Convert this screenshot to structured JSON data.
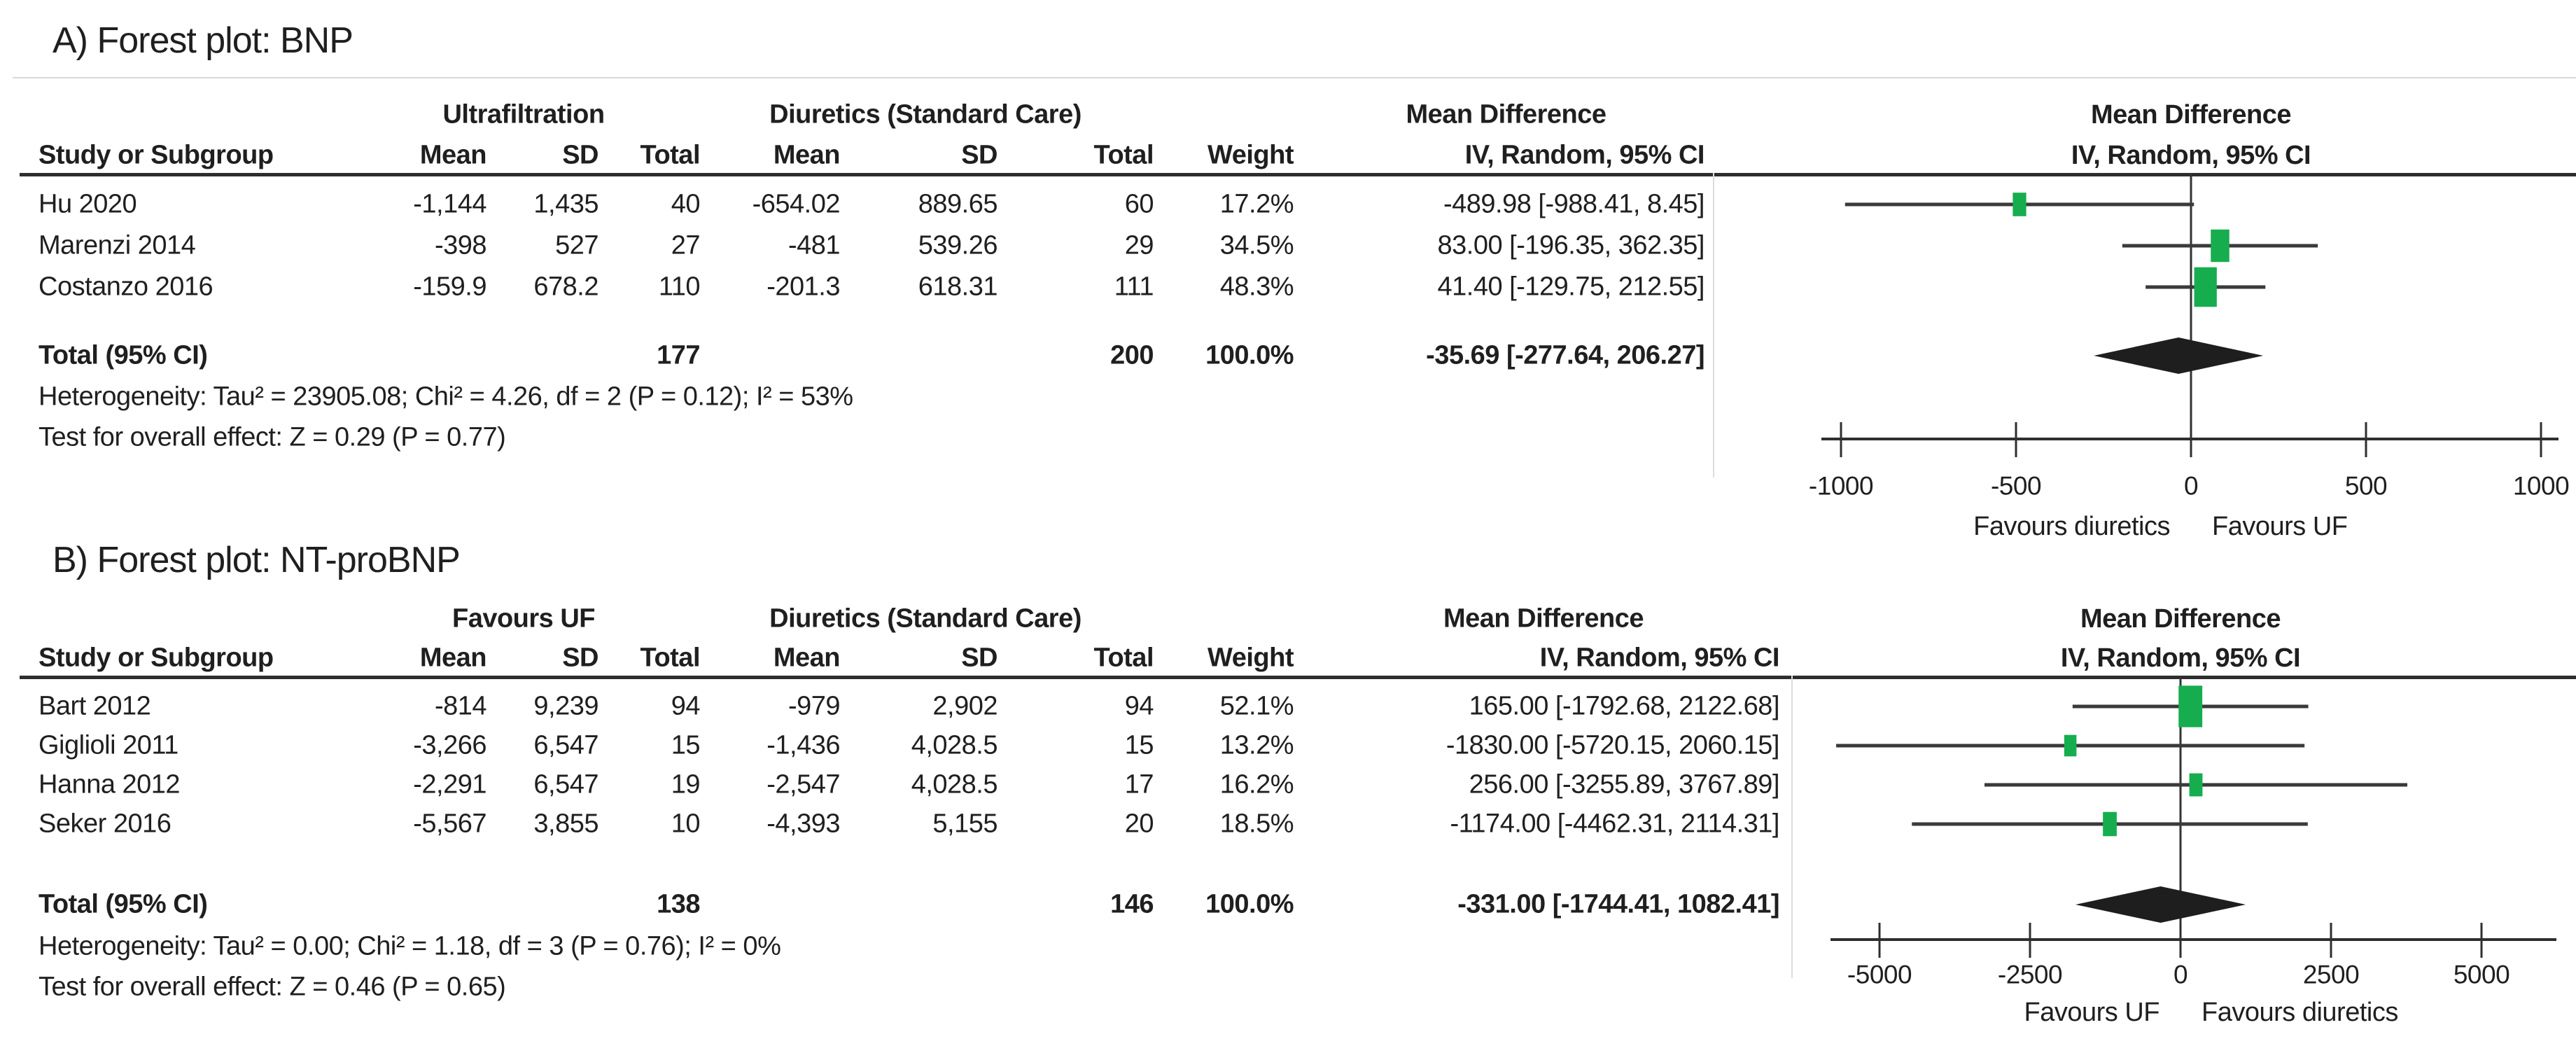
{
  "figure": {
    "kind": "meta-analysis forest plots",
    "background": "#ffffff"
  },
  "colors": {
    "marker_green": "#16AD4F",
    "ci_line": "#3a3a3a",
    "zero_line": "#333333",
    "axis": "#2f2f2f",
    "diamond": "#1e1e1e",
    "text": "#1f1f1f",
    "header_rule": "#2e2e2e",
    "hairline": "#d8d8d8",
    "separator": "#dedede"
  },
  "chart_data": [
    {
      "type": "scatter",
      "chart_kind": "forest_plot",
      "panel_label": "A",
      "title": "A) Forest plot: BNP",
      "group1_header": "Ultrafiltration",
      "group2_header": "Diuretics (Standard Care)",
      "effect_header": "Mean Difference",
      "effect_subheader": "IV, Random, 95% CI",
      "plot_header": "Mean Difference",
      "plot_subheader": "IV, Random, 95% CI",
      "columns": {
        "study": "Study or Subgroup",
        "mean": "Mean",
        "sd": "SD",
        "total": "Total",
        "weight": "Weight"
      },
      "studies": [
        {
          "name": "Hu 2020",
          "mean1": "-1,144",
          "sd1": "1,435",
          "total1": "40",
          "mean2": "-654.02",
          "sd2": "889.65",
          "total2": "60",
          "weight": "17.2%",
          "weight_pct": 17.2,
          "md_text": "-489.98 [-988.41, 8.45]",
          "md": -489.98,
          "ci_low": -988.41,
          "ci_high": 8.45
        },
        {
          "name": "Marenzi 2014",
          "mean1": "-398",
          "sd1": "527",
          "total1": "27",
          "mean2": "-481",
          "sd2": "539.26",
          "total2": "29",
          "weight": "34.5%",
          "weight_pct": 34.5,
          "md_text": "83.00 [-196.35, 362.35]",
          "md": 83.0,
          "ci_low": -196.35,
          "ci_high": 362.35
        },
        {
          "name": "Costanzo 2016",
          "mean1": "-159.9",
          "sd1": "678.2",
          "total1": "110",
          "mean2": "-201.3",
          "sd2": "618.31",
          "total2": "111",
          "weight": "48.3%",
          "weight_pct": 48.3,
          "md_text": "41.40 [-129.75, 212.55]",
          "md": 41.4,
          "ci_low": -129.75,
          "ci_high": 212.55
        }
      ],
      "total": {
        "label": "Total (95% CI)",
        "total1": "177",
        "total2": "200",
        "weight": "100.0%",
        "md_text": "-35.69 [-277.64, 206.27]",
        "md": -35.69,
        "ci_low": -277.64,
        "ci_high": 206.27
      },
      "heterogeneity": "Heterogeneity: Tau² = 23905.08; Chi² = 4.26, df = 2 (P = 0.12); I² = 53%",
      "overall_effect": "Test for overall effect: Z = 0.29 (P = 0.77)",
      "axis": {
        "min": -1000,
        "max": 1000,
        "ticks": [
          -1000,
          -500,
          0,
          500,
          1000
        ],
        "tick_labels": [
          "-1000",
          "-500",
          "0",
          "500",
          "1000"
        ],
        "favours_left": "Favours diuretics",
        "favours_right": "Favours UF"
      }
    },
    {
      "type": "scatter",
      "chart_kind": "forest_plot",
      "panel_label": "B",
      "title": "B) Forest plot: NT-proBNP",
      "group1_header": "Favours UF",
      "group2_header": "Diuretics (Standard Care)",
      "effect_header": "Mean Difference",
      "effect_subheader": "IV, Random, 95% CI",
      "plot_header": "Mean Difference",
      "plot_subheader": "IV, Random, 95% CI",
      "columns": {
        "study": "Study or Subgroup",
        "mean": "Mean",
        "sd": "SD",
        "total": "Total",
        "weight": "Weight"
      },
      "studies": [
        {
          "name": "Bart 2012",
          "mean1": "-814",
          "sd1": "9,239",
          "total1": "94",
          "mean2": "-979",
          "sd2": "2,902",
          "total2": "94",
          "weight": "52.1%",
          "weight_pct": 52.1,
          "md_text": "165.00 [-1792.68, 2122.68]",
          "md": 165.0,
          "ci_low": -1792.68,
          "ci_high": 2122.68
        },
        {
          "name": "Giglioli 2011",
          "mean1": "-3,266",
          "sd1": "6,547",
          "total1": "15",
          "mean2": "-1,436",
          "sd2": "4,028.5",
          "total2": "15",
          "weight": "13.2%",
          "weight_pct": 13.2,
          "md_text": "-1830.00 [-5720.15, 2060.15]",
          "md": -1830.0,
          "ci_low": -5720.15,
          "ci_high": 2060.15
        },
        {
          "name": "Hanna 2012",
          "mean1": "-2,291",
          "sd1": "6,547",
          "total1": "19",
          "mean2": "-2,547",
          "sd2": "4,028.5",
          "total2": "17",
          "weight": "16.2%",
          "weight_pct": 16.2,
          "md_text": "256.00 [-3255.89, 3767.89]",
          "md": 256.0,
          "ci_low": -3255.89,
          "ci_high": 3767.89
        },
        {
          "name": "Seker 2016",
          "mean1": "-5,567",
          "sd1": "3,855",
          "total1": "10",
          "mean2": "-4,393",
          "sd2": "5,155",
          "total2": "20",
          "weight": "18.5%",
          "weight_pct": 18.5,
          "md_text": "-1174.00 [-4462.31, 2114.31]",
          "md": -1174.0,
          "ci_low": -4462.31,
          "ci_high": 2114.31
        }
      ],
      "total": {
        "label": "Total (95% CI)",
        "total1": "138",
        "total2": "146",
        "weight": "100.0%",
        "md_text": "-331.00 [-1744.41, 1082.41]",
        "md": -331.0,
        "ci_low": -1744.41,
        "ci_high": 1082.41
      },
      "heterogeneity": "Heterogeneity: Tau² = 0.00; Chi² = 1.18, df = 3 (P = 0.76); I² = 0%",
      "overall_effect": "Test for overall effect: Z = 0.46 (P = 0.65)",
      "axis": {
        "min": -5000,
        "max": 5000,
        "ticks": [
          -5000,
          -2500,
          0,
          2500,
          5000
        ],
        "tick_labels": [
          "-5000",
          "-2500",
          "0",
          "2500",
          "5000"
        ],
        "favours_left": "Favours UF",
        "favours_right": "Favours diuretics"
      }
    }
  ]
}
